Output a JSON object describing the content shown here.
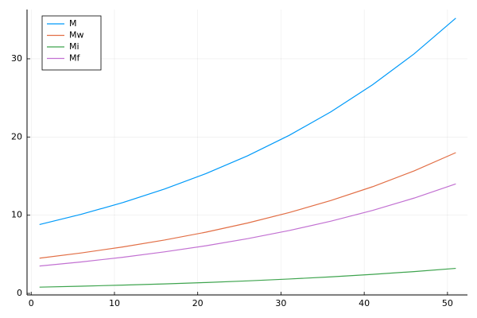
{
  "chart_data": {
    "type": "line",
    "x": [
      1,
      6,
      11,
      16,
      21,
      26,
      31,
      36,
      41,
      46,
      51
    ],
    "series": [
      {
        "name": "M",
        "color": "#009af9",
        "values": [
          8.8,
          10.11,
          11.61,
          13.34,
          15.32,
          17.6,
          20.22,
          23.22,
          26.68,
          30.64,
          35.2
        ]
      },
      {
        "name": "Mw",
        "color": "#e26f46",
        "values": [
          4.5,
          5.17,
          5.94,
          6.82,
          7.83,
          9.0,
          10.34,
          11.88,
          13.64,
          15.67,
          18.0
        ]
      },
      {
        "name": "Mi",
        "color": "#3ea44e",
        "values": [
          0.8,
          0.92,
          1.06,
          1.21,
          1.39,
          1.6,
          1.84,
          2.11,
          2.43,
          2.79,
          3.2
        ]
      },
      {
        "name": "Mf",
        "color": "#c271d2",
        "values": [
          3.5,
          4.02,
          4.62,
          5.31,
          6.09,
          7.0,
          8.04,
          9.24,
          10.61,
          12.19,
          14.0
        ]
      }
    ],
    "xlim": [
      -0.5,
      52.4
    ],
    "ylim": [
      -0.2,
      36.3
    ],
    "xticks": [
      0,
      10,
      20,
      30,
      40,
      50
    ],
    "yticks": [
      0,
      10,
      20,
      30
    ],
    "grid": true,
    "legend": "top-left"
  }
}
